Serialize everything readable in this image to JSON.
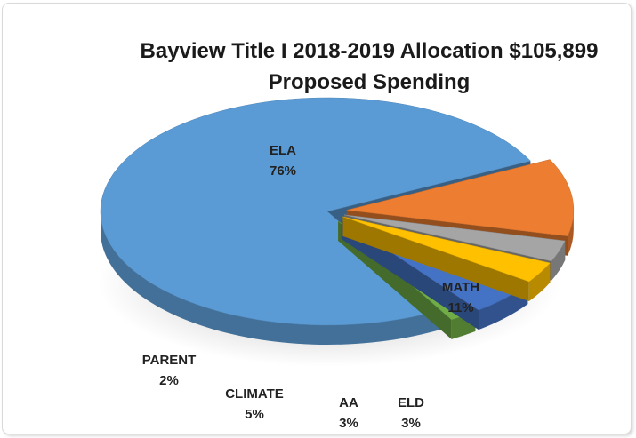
{
  "chart_data": {
    "type": "pie",
    "title": "Bayview Title I 2018-2019 Allocation $105,899",
    "subtitle": "Proposed Spending",
    "slices": [
      {
        "label": "ELA",
        "value": 76,
        "display": "76%",
        "color": "#5b9bd5"
      },
      {
        "label": "MATH",
        "value": 11,
        "display": "11%",
        "color": "#ed7d31"
      },
      {
        "label": "ELD",
        "value": 3,
        "display": "3%",
        "color": "#a5a5a5"
      },
      {
        "label": "AA",
        "value": 3,
        "display": "3%",
        "color": "#ffc000"
      },
      {
        "label": "CLIMATE",
        "value": 5,
        "display": "5%",
        "color": "#4472c4"
      },
      {
        "label": "PARENT",
        "value": 2,
        "display": "2%",
        "color": "#70ad47"
      }
    ],
    "legend": "none",
    "style": "3d-exploded"
  }
}
